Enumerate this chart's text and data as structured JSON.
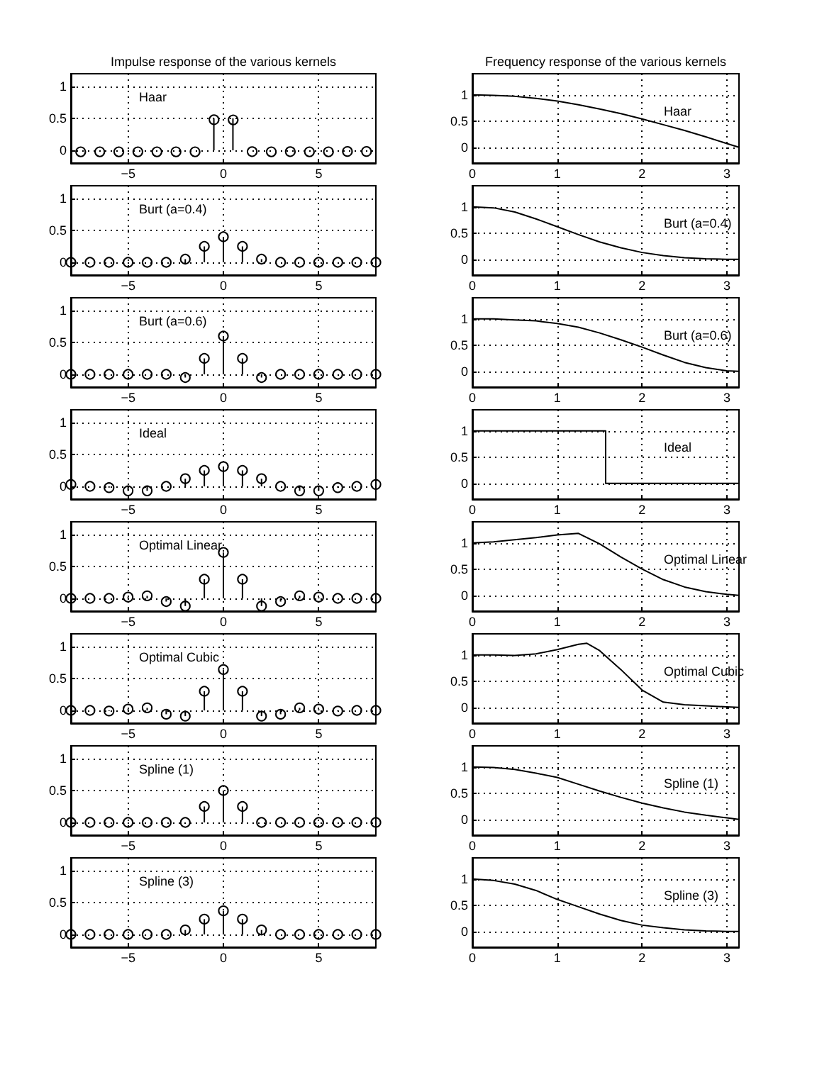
{
  "chart_data": [
    {
      "type": "lollipop",
      "title": "Impulse response of the various kernels",
      "annotations": [
        "Haar"
      ],
      "x": [
        -7.5,
        -6.5,
        -5.5,
        -4.5,
        -3.5,
        -2.5,
        -1.5,
        -0.5,
        0.5,
        1.5,
        2.5,
        3.5,
        4.5,
        5.5,
        6.5,
        7.5
      ],
      "values": [
        0,
        0,
        0,
        0,
        0,
        0,
        0,
        0.5,
        0.5,
        0,
        0,
        0,
        0,
        0,
        0,
        0
      ],
      "color": "#000000",
      "marker": "circle",
      "xlim": [
        -8,
        8
      ],
      "xticks": [
        -5,
        0,
        5
      ],
      "ylim": [
        -0.2,
        1.2
      ],
      "yticks": [
        0,
        0.5,
        1
      ],
      "grid": true
    },
    {
      "type": "line",
      "title": "Frequency response of the various kernels",
      "annotations": [
        "Haar"
      ],
      "x": [
        0,
        0.25,
        0.5,
        0.75,
        1,
        1.25,
        1.5,
        1.75,
        2,
        2.25,
        2.5,
        2.75,
        3,
        3.1416
      ],
      "values": [
        1,
        0.99,
        0.97,
        0.93,
        0.88,
        0.81,
        0.73,
        0.64,
        0.54,
        0.43,
        0.32,
        0.2,
        0.07,
        0
      ],
      "color": "#000000",
      "xlim": [
        0,
        3.1416
      ],
      "xticks": [
        0,
        1,
        2,
        3
      ],
      "ylim": [
        -0.3,
        1.4
      ],
      "yticks": [
        0,
        0.5,
        1
      ],
      "grid": true
    },
    {
      "type": "lollipop",
      "annotations": [
        "Burt (a=0.4)"
      ],
      "x": [
        -8,
        -7,
        -6,
        -5,
        -4,
        -3,
        -2,
        -1,
        0,
        1,
        2,
        3,
        4,
        5,
        6,
        7,
        8
      ],
      "values": [
        0,
        0,
        0,
        0,
        0,
        0,
        0.05,
        0.25,
        0.4,
        0.25,
        0.05,
        0,
        0,
        0,
        0,
        0,
        0
      ],
      "color": "#000000",
      "marker": "circle",
      "xlim": [
        -8,
        8
      ],
      "xticks": [
        -5,
        0,
        5
      ],
      "ylim": [
        -0.2,
        1.2
      ],
      "yticks": [
        0,
        0.5,
        1
      ],
      "grid": true
    },
    {
      "type": "line",
      "annotations": [
        "Burt (a=0.4)"
      ],
      "x": [
        0,
        0.25,
        0.5,
        0.75,
        1,
        1.25,
        1.5,
        1.75,
        2,
        2.25,
        2.5,
        2.75,
        3,
        3.1416
      ],
      "values": [
        1,
        0.98,
        0.9,
        0.77,
        0.62,
        0.47,
        0.33,
        0.22,
        0.13,
        0.07,
        0.03,
        0.01,
        0,
        0
      ],
      "color": "#000000",
      "xlim": [
        0,
        3.1416
      ],
      "xticks": [
        0,
        1,
        2,
        3
      ],
      "ylim": [
        -0.3,
        1.4
      ],
      "yticks": [
        0,
        0.5,
        1
      ],
      "grid": true
    },
    {
      "type": "lollipop",
      "annotations": [
        "Burt (a=0.6)"
      ],
      "x": [
        -8,
        -7,
        -6,
        -5,
        -4,
        -3,
        -2,
        -1,
        0,
        1,
        2,
        3,
        4,
        5,
        6,
        7,
        8
      ],
      "values": [
        0,
        0,
        0,
        0,
        0,
        0,
        -0.05,
        0.25,
        0.6,
        0.25,
        -0.05,
        0,
        0,
        0,
        0,
        0,
        0
      ],
      "color": "#000000",
      "marker": "circle",
      "xlim": [
        -8,
        8
      ],
      "xticks": [
        -5,
        0,
        5
      ],
      "ylim": [
        -0.2,
        1.2
      ],
      "yticks": [
        0,
        0.5,
        1
      ],
      "grid": true
    },
    {
      "type": "line",
      "annotations": [
        "Burt (a=0.6)"
      ],
      "x": [
        0,
        0.25,
        0.5,
        0.75,
        1,
        1.25,
        1.5,
        1.75,
        2,
        2.25,
        2.5,
        2.75,
        3,
        3.1416
      ],
      "values": [
        1,
        1,
        0.98,
        0.96,
        0.91,
        0.84,
        0.73,
        0.6,
        0.46,
        0.31,
        0.17,
        0.07,
        0.01,
        0
      ],
      "color": "#000000",
      "xlim": [
        0,
        3.1416
      ],
      "xticks": [
        0,
        1,
        2,
        3
      ],
      "ylim": [
        -0.3,
        1.4
      ],
      "yticks": [
        0,
        0.5,
        1
      ],
      "grid": true
    },
    {
      "type": "lollipop",
      "annotations": [
        "Ideal"
      ],
      "x": [
        -8,
        -7,
        -6,
        -5,
        -4,
        -3,
        -2,
        -1,
        0,
        1,
        2,
        3,
        4,
        5,
        6,
        7,
        8
      ],
      "values": [
        0.03,
        0,
        -0.02,
        -0.07,
        -0.07,
        0,
        0.12,
        0.25,
        0.31,
        0.25,
        0.12,
        0,
        -0.07,
        -0.07,
        -0.02,
        0,
        0.03
      ],
      "color": "#000000",
      "marker": "circle",
      "xlim": [
        -8,
        8
      ],
      "xticks": [
        -5,
        0,
        5
      ],
      "ylim": [
        -0.2,
        1.2
      ],
      "yticks": [
        0,
        0.5,
        1
      ],
      "grid": true
    },
    {
      "type": "line",
      "annotations": [
        "Ideal"
      ],
      "x": [
        0,
        1.5708,
        1.5708,
        3.1416
      ],
      "values": [
        1,
        1,
        0,
        0
      ],
      "color": "#000000",
      "xlim": [
        0,
        3.1416
      ],
      "xticks": [
        0,
        1,
        2,
        3
      ],
      "ylim": [
        -0.3,
        1.4
      ],
      "yticks": [
        0,
        0.5,
        1
      ],
      "grid": true
    },
    {
      "type": "lollipop",
      "annotations": [
        "Optimal Linear"
      ],
      "x": [
        -8,
        -7,
        -6,
        -5,
        -4,
        -3,
        -2,
        -1,
        0,
        1,
        2,
        3,
        4,
        5,
        6,
        7,
        8
      ],
      "values": [
        0,
        0,
        0,
        0.02,
        0.04,
        -0.05,
        -0.12,
        0.3,
        0.72,
        0.3,
        -0.12,
        -0.05,
        0.04,
        0.02,
        0,
        0,
        0
      ],
      "color": "#000000",
      "marker": "circle",
      "xlim": [
        -8,
        8
      ],
      "xticks": [
        -5,
        0,
        5
      ],
      "ylim": [
        -0.2,
        1.2
      ],
      "yticks": [
        0,
        0.5,
        1
      ],
      "grid": true
    },
    {
      "type": "line",
      "annotations": [
        "Optimal Linear"
      ],
      "x": [
        0,
        0.25,
        0.5,
        0.75,
        1,
        1.25,
        1.5,
        1.75,
        2,
        2.25,
        2.5,
        2.75,
        3,
        3.1416
      ],
      "values": [
        1,
        1.02,
        1.06,
        1.1,
        1.15,
        1.18,
        0.98,
        0.73,
        0.5,
        0.3,
        0.16,
        0.07,
        0.02,
        0
      ],
      "color": "#000000",
      "xlim": [
        0,
        3.1416
      ],
      "xticks": [
        0,
        1,
        2,
        3
      ],
      "ylim": [
        -0.3,
        1.4
      ],
      "yticks": [
        0,
        0.5,
        1
      ],
      "grid": true
    },
    {
      "type": "lollipop",
      "annotations": [
        "Optimal Cubic"
      ],
      "x": [
        -8,
        -7,
        -6,
        -5,
        -4,
        -3,
        -2,
        -1,
        0,
        1,
        2,
        3,
        4,
        5,
        6,
        7,
        8
      ],
      "values": [
        0,
        0,
        -0.01,
        0.02,
        0.04,
        -0.06,
        -0.09,
        0.3,
        0.64,
        0.3,
        -0.09,
        -0.06,
        0.04,
        0.02,
        -0.01,
        0,
        0
      ],
      "color": "#000000",
      "marker": "circle",
      "xlim": [
        -8,
        8
      ],
      "xticks": [
        -5,
        0,
        5
      ],
      "ylim": [
        -0.2,
        1.2
      ],
      "yticks": [
        0,
        0.5,
        1
      ],
      "grid": true
    },
    {
      "type": "line",
      "annotations": [
        "Optimal Cubic"
      ],
      "x": [
        0,
        0.25,
        0.5,
        0.75,
        1,
        1.25,
        1.35,
        1.5,
        1.75,
        2,
        2.25,
        2.5,
        2.75,
        3,
        3.1416
      ],
      "values": [
        1,
        1,
        0.99,
        1.02,
        1.1,
        1.2,
        1.22,
        1.08,
        0.72,
        0.33,
        0.1,
        0.05,
        0.03,
        0.01,
        0
      ],
      "color": "#000000",
      "xlim": [
        0,
        3.1416
      ],
      "xticks": [
        0,
        1,
        2,
        3
      ],
      "ylim": [
        -0.3,
        1.4
      ],
      "yticks": [
        0,
        0.5,
        1
      ],
      "grid": true
    },
    {
      "type": "lollipop",
      "annotations": [
        "Spline (1)"
      ],
      "x": [
        -8,
        -7,
        -6,
        -5,
        -4,
        -3,
        -2,
        -1,
        0,
        1,
        2,
        3,
        4,
        5,
        6,
        7,
        8
      ],
      "values": [
        0,
        0,
        0,
        0,
        0,
        0,
        0,
        0.25,
        0.5,
        0.25,
        0,
        0,
        0,
        0,
        0,
        0,
        0
      ],
      "color": "#000000",
      "marker": "circle",
      "xlim": [
        -8,
        8
      ],
      "xticks": [
        -5,
        0,
        5
      ],
      "ylim": [
        -0.2,
        1.2
      ],
      "yticks": [
        0,
        0.5,
        1
      ],
      "grid": true
    },
    {
      "type": "line",
      "annotations": [
        "Spline (1)"
      ],
      "x": [
        0,
        0.25,
        0.5,
        0.75,
        1,
        1.25,
        1.5,
        1.75,
        2,
        2.25,
        2.5,
        2.75,
        3,
        3.1416
      ],
      "values": [
        1,
        0.99,
        0.95,
        0.88,
        0.8,
        0.67,
        0.54,
        0.42,
        0.31,
        0.22,
        0.14,
        0.08,
        0.03,
        0
      ],
      "color": "#000000",
      "xlim": [
        0,
        3.1416
      ],
      "xticks": [
        0,
        1,
        2,
        3
      ],
      "ylim": [
        -0.3,
        1.4
      ],
      "yticks": [
        0,
        0.5,
        1
      ],
      "grid": true
    },
    {
      "type": "lollipop",
      "annotations": [
        "Spline (3)"
      ],
      "x": [
        -8,
        -7,
        -6,
        -5,
        -4,
        -3,
        -2,
        -1,
        0,
        1,
        2,
        3,
        4,
        5,
        6,
        7,
        8
      ],
      "values": [
        0,
        0,
        0,
        0,
        0,
        0,
        0.07,
        0.24,
        0.37,
        0.24,
        0.07,
        0,
        0,
        0,
        0,
        0,
        0
      ],
      "color": "#000000",
      "marker": "circle",
      "xlim": [
        -8,
        8
      ],
      "xticks": [
        -5,
        0,
        5
      ],
      "ylim": [
        -0.2,
        1.2
      ],
      "yticks": [
        0,
        0.5,
        1
      ],
      "grid": true
    },
    {
      "type": "line",
      "annotations": [
        "Spline (3)"
      ],
      "x": [
        0,
        0.25,
        0.5,
        0.75,
        1,
        1.25,
        1.5,
        1.75,
        2,
        2.25,
        2.5,
        2.75,
        3,
        3.1416
      ],
      "values": [
        1,
        0.97,
        0.9,
        0.78,
        0.61,
        0.47,
        0.33,
        0.21,
        0.12,
        0.07,
        0.03,
        0.01,
        0,
        0
      ],
      "color": "#000000",
      "xlim": [
        0,
        3.1416
      ],
      "xticks": [
        0,
        1,
        2,
        3
      ],
      "ylim": [
        -0.3,
        1.4
      ],
      "yticks": [
        0,
        0.5,
        1
      ],
      "grid": true
    }
  ]
}
